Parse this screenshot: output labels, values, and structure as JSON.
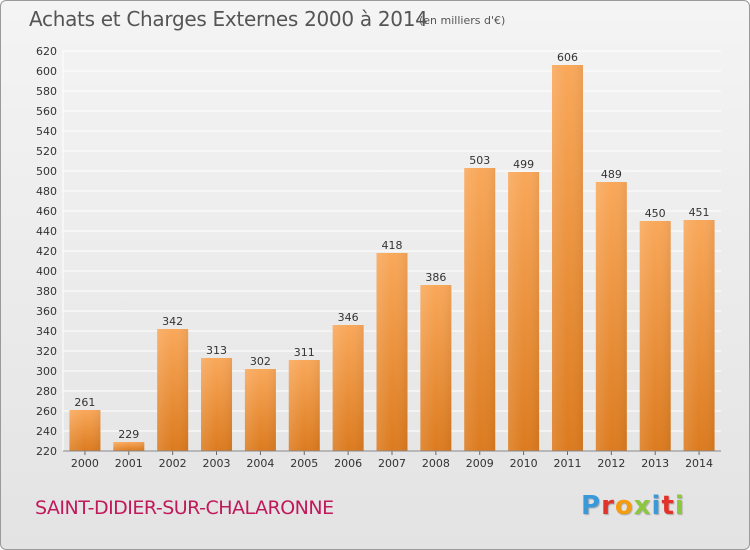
{
  "header": {
    "title": "Achats et Charges Externes 2000 à 2014",
    "subtitle": "(en milliers d'€)"
  },
  "footer": {
    "commune": "SAINT-DIDIER-SUR-CHALARONNE",
    "logo": {
      "letters": [
        "P",
        "r",
        "o",
        "x",
        "i",
        "t",
        "i"
      ],
      "colors": [
        "#3a9ad9",
        "#e2332b",
        "#f39c12",
        "#8dc63f",
        "#3a9ad9",
        "#e2332b",
        "#8dc63f"
      ]
    }
  },
  "colors": {
    "bar_top": "#f9a85a",
    "bar_bottom": "#dc7b1f",
    "grid": "#ffffff",
    "title": "#555555",
    "commune": "#c0195a"
  },
  "chart_data": {
    "type": "bar",
    "title": "Achats et Charges Externes 2000 à 2014",
    "subtitle": "(en milliers d'€)",
    "categories": [
      "2000",
      "2001",
      "2002",
      "2003",
      "2004",
      "2005",
      "2006",
      "2007",
      "2008",
      "2009",
      "2010",
      "2011",
      "2012",
      "2013",
      "2014"
    ],
    "values": [
      261,
      229,
      342,
      313,
      302,
      311,
      346,
      418,
      386,
      503,
      499,
      606,
      489,
      450,
      451
    ],
    "ylim": [
      220,
      620
    ],
    "yticks": [
      220,
      240,
      260,
      280,
      300,
      320,
      340,
      360,
      380,
      400,
      420,
      440,
      460,
      480,
      500,
      520,
      540,
      560,
      580,
      600,
      620
    ],
    "grid": true,
    "legend": "none"
  }
}
